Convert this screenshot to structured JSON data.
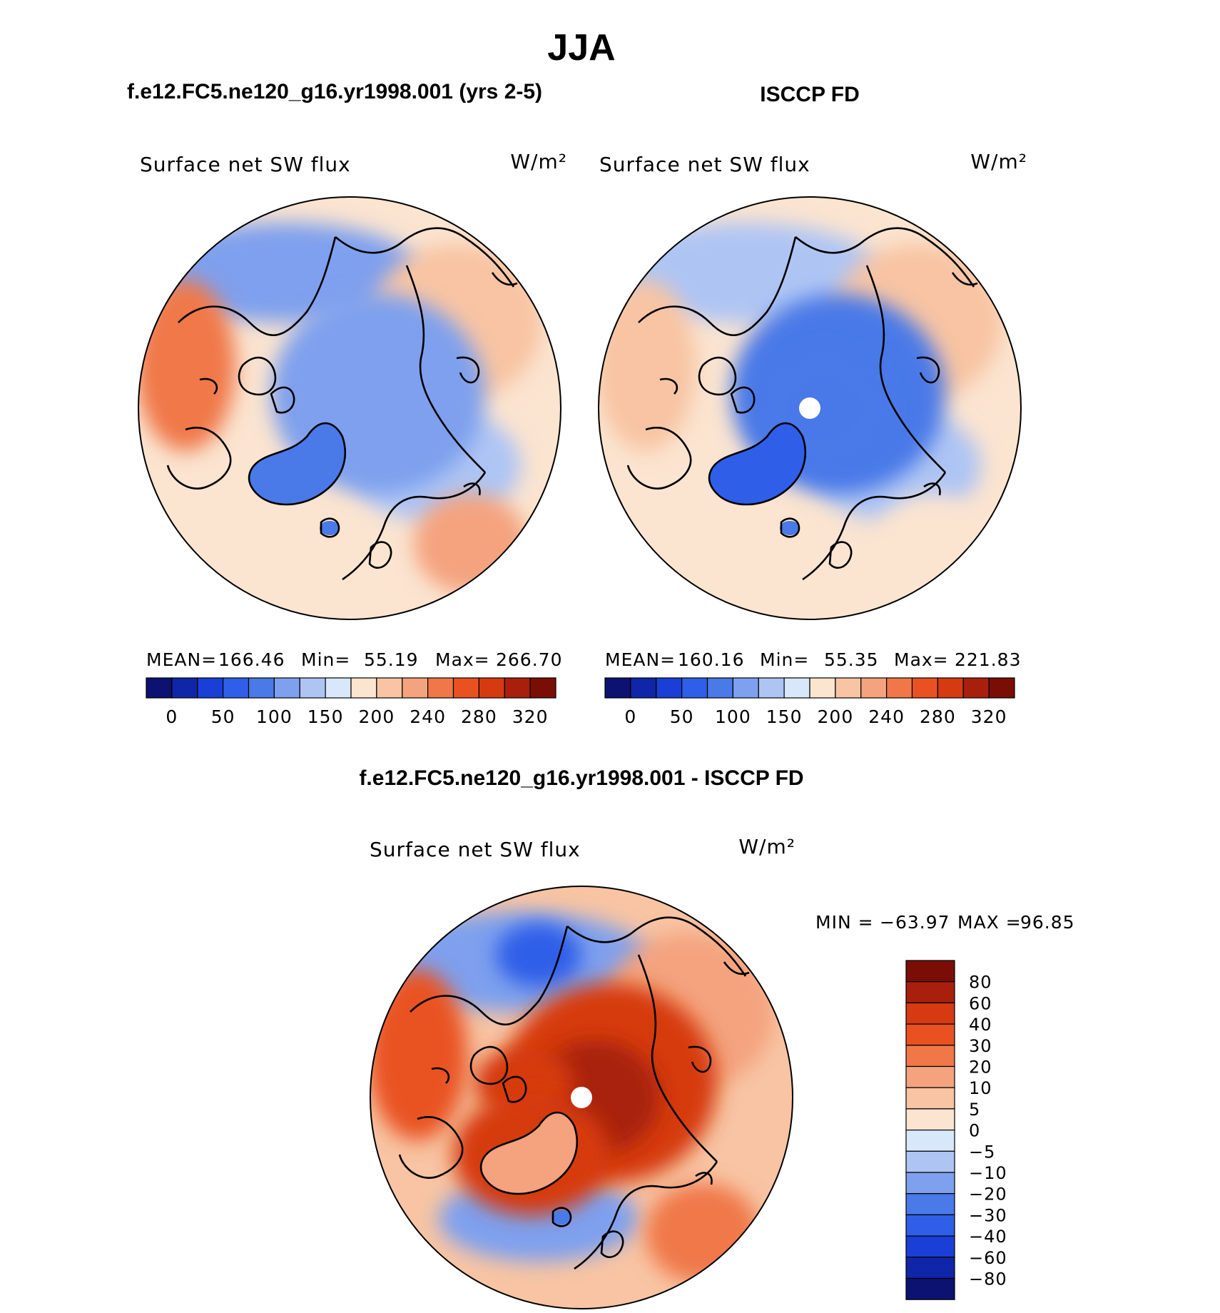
{
  "title": "JJA",
  "headers": {
    "model": "f.e12.FC5.ne120_g16.yr1998.001 (yrs 2-5)",
    "obs": "ISCCP FD",
    "diff": "f.e12.FC5.ne120_g16.yr1998.001 - ISCCP FD"
  },
  "chart_data": [
    {
      "type": "heatmap",
      "name": "model",
      "projection": "north polar stereographic",
      "variable": "Surface net SW flux",
      "units": "W/m²",
      "stats": {
        "mean_label": "MEAN=",
        "mean": "166.46",
        "min_label": "Min=",
        "min": "55.19",
        "max_label": "Max=",
        "max": "266.70"
      },
      "regions": {
        "background": 180,
        "north_pacific": 120,
        "barents_kara": 140,
        "arctic_ocean": 100,
        "greenland": 75,
        "siberia": 210,
        "north_america_west": 245,
        "europe": 230,
        "iceland": 90
      }
    },
    {
      "type": "heatmap",
      "name": "obs",
      "projection": "north polar stereographic",
      "variable": "Surface net SW flux",
      "units": "W/m²",
      "stats": {
        "mean_label": "MEAN=",
        "mean": "160.16",
        "min_label": "Min=",
        "min": "55.35",
        "max_label": "Max=",
        "max": "221.83"
      },
      "regions": {
        "background": 185,
        "north_pacific": 140,
        "barents_kara": 140,
        "arctic_ocean": 90,
        "arctic_core": 80,
        "greenland": 70,
        "siberia": 200,
        "north_america_west": 205,
        "europe": 195,
        "iceland": 80
      }
    },
    {
      "type": "heatmap",
      "name": "difference",
      "projection": "north polar stereographic",
      "variable": "Surface net SW flux",
      "units": "W/m²",
      "stats": {
        "min_label": "MIN =",
        "min": "−63.97",
        "max_label": "MAX =",
        "max": "96.85"
      },
      "regions": {
        "background": 8,
        "north_pacific": -20,
        "bering_strait": -35,
        "siberia": 10,
        "arctic_ocean": 45,
        "arctic_core": 60,
        "canadian_archipelago": 40,
        "greenland": 15,
        "greenland_margin": 50,
        "atlantic": -18,
        "europe": 25,
        "north_america_west": 30,
        "iceland": -25
      }
    }
  ],
  "colorbars": {
    "abs": {
      "labels": [
        "0",
        "50",
        "100",
        "150",
        "200",
        "240",
        "280",
        "320"
      ],
      "colors": [
        "#0b1271",
        "#1026a8",
        "#1a3fd6",
        "#2f5fe8",
        "#4a79e8",
        "#7ea0ee",
        "#aec5f4",
        "#d8e8fa",
        "#fbe4d0",
        "#f8c4a3",
        "#f4a37e",
        "#f07848",
        "#e95220",
        "#d63a10",
        "#a8200c",
        "#7a0e06"
      ]
    },
    "diff": {
      "labels": [
        "80",
        "60",
        "40",
        "30",
        "20",
        "10",
        "5",
        "0",
        "−5",
        "−10",
        "−20",
        "−30",
        "−40",
        "−60",
        "−80"
      ],
      "colors": [
        "#7a0e06",
        "#a8200c",
        "#d63a10",
        "#e95220",
        "#f07848",
        "#f4a37e",
        "#f8c4a3",
        "#fbe4d0",
        "#d8e8fa",
        "#aec5f4",
        "#7ea0ee",
        "#4a79e8",
        "#2f5fe8",
        "#1a3fd6",
        "#1026a8",
        "#0b1271"
      ]
    }
  },
  "colors": {
    "land_outline": "#000000",
    "pole_mask": "#ffffff"
  }
}
